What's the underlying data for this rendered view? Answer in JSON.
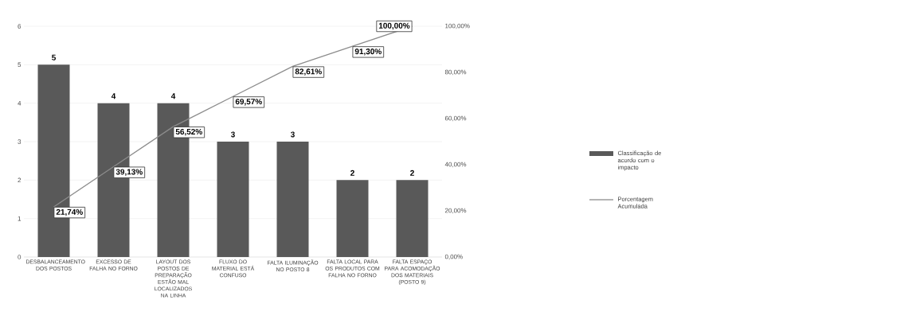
{
  "chart_data": {
    "type": "bar",
    "categories": [
      "DESBALANCEAMENTO DOS POSTOS",
      "EXCESSO DE FALHA NO FORNO",
      "LAYOUT DOS POSTOS DE PREPARAÇÃO ESTÃO MAL LOCALIZADOS NA LINHA",
      "FLUXO DO MATERIAL ESTÁ CONFUSO",
      "FALTA ILUMINAÇÃO NO POSTO 8",
      "FALTA LOCAL PARA OS PRODUTOS COM FALHA NO FORNO",
      "FALTA ESPAÇO PARA ACOMODAÇÃO DOS MATERIAIS (POSTO 9)"
    ],
    "series": [
      {
        "name": "Classificação de acordo com o impacto",
        "color": "#595959",
        "values": [
          5,
          4,
          4,
          3,
          3,
          2,
          2
        ],
        "value_labels": [
          "5",
          "4",
          "4",
          "3",
          "3",
          "2",
          "2"
        ]
      },
      {
        "type": "line",
        "axis": "y2",
        "name": "Porcentagem Acumulada",
        "color": "#8c8c8c",
        "values": [
          21.74,
          39.13,
          56.52,
          69.57,
          82.61,
          91.3,
          100
        ],
        "value_labels": [
          "21,74%",
          "39,13%",
          "56,52%",
          "69,57%",
          "82,61%",
          "91,30%",
          "100,00%"
        ]
      }
    ],
    "ylim": [
      0,
      6
    ],
    "yticks": [
      0,
      1,
      2,
      3,
      4,
      5,
      6
    ],
    "y2lim": [
      0,
      100
    ],
    "y2ticks": [
      {
        "value": 0,
        "label": "0,00%"
      },
      {
        "value": 20,
        "label": "20,00%"
      },
      {
        "value": 40,
        "label": "40,00%"
      },
      {
        "value": 60,
        "label": "60,00%"
      },
      {
        "value": 80,
        "label": "80,00%"
      },
      {
        "value": 100,
        "label": "100,00%"
      }
    ],
    "grid": "y",
    "legend": "right"
  }
}
